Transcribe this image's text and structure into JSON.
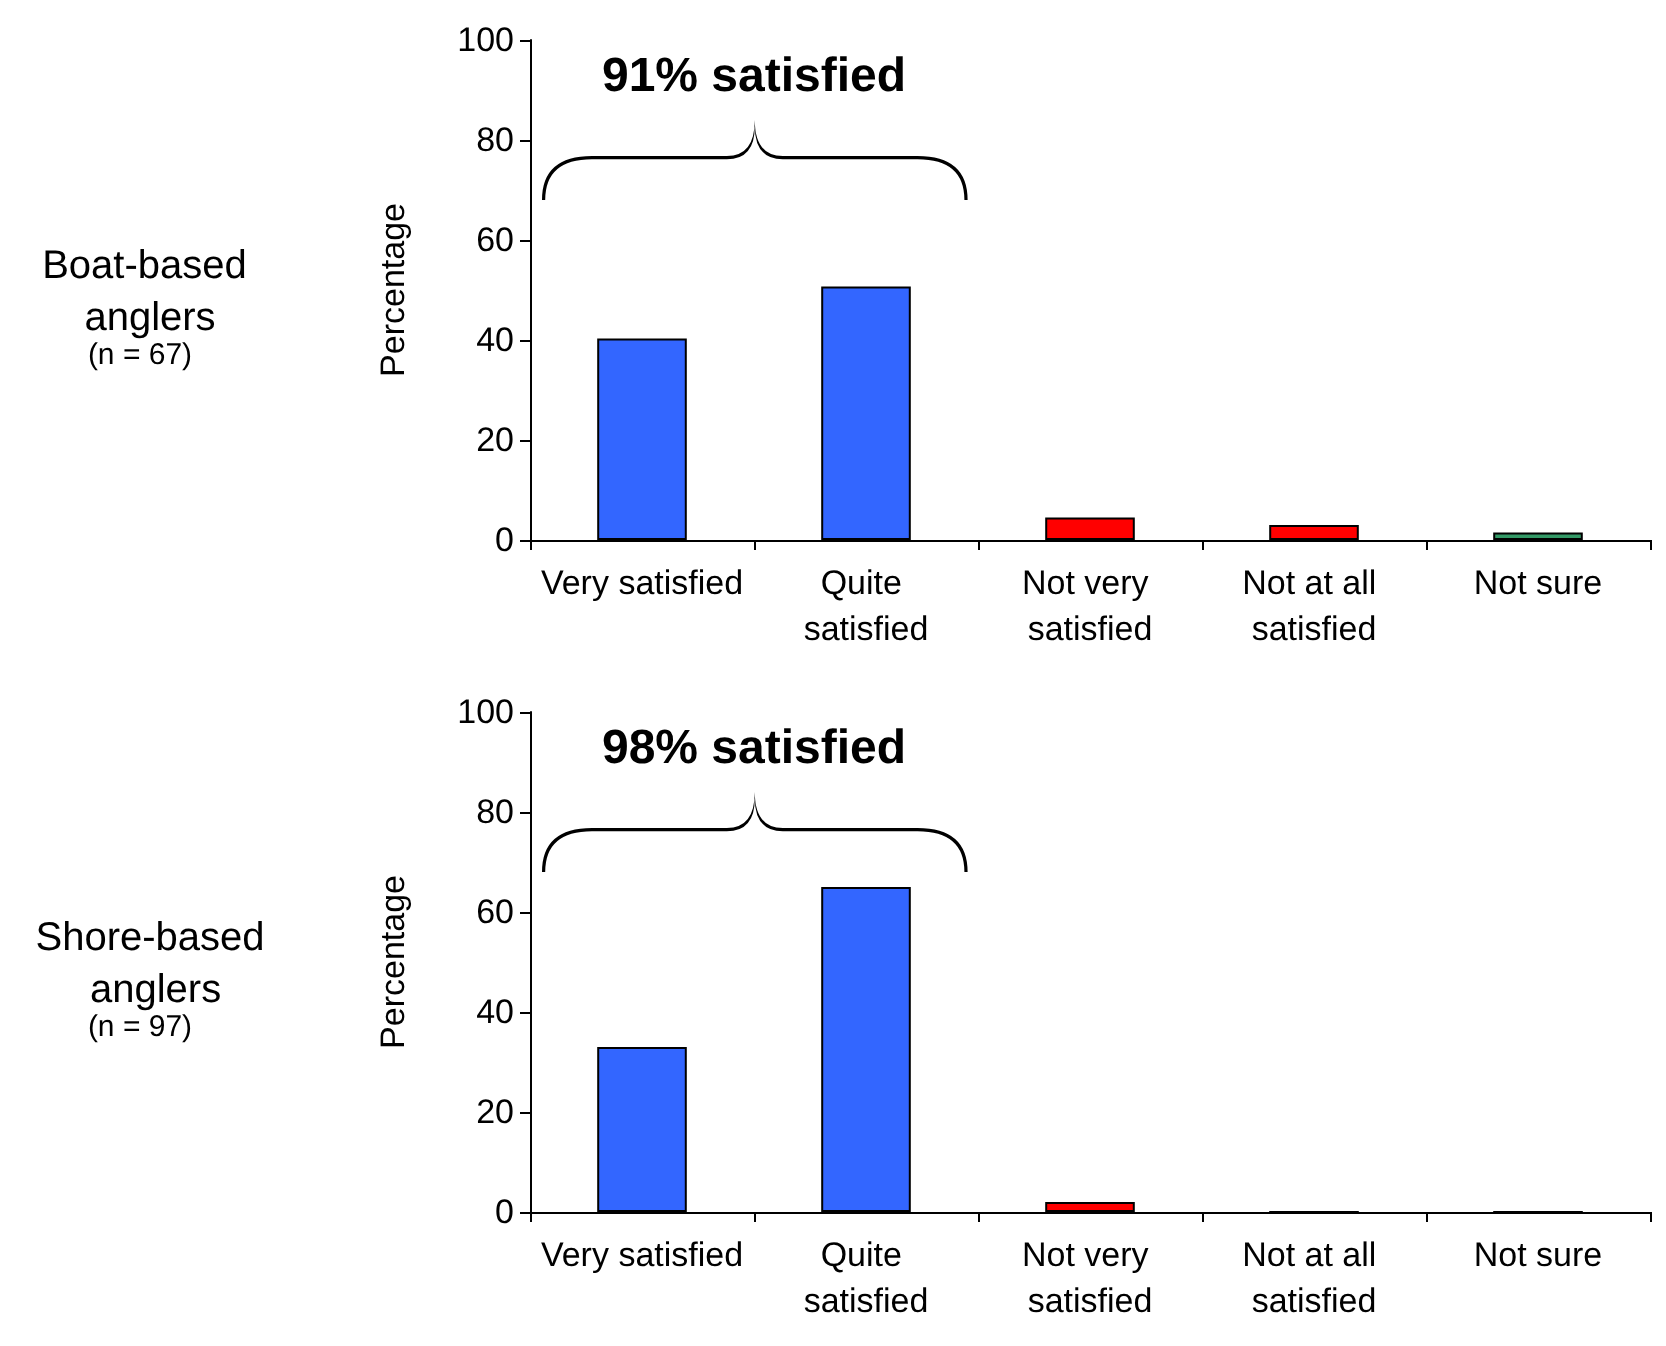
{
  "chart_data": [
    {
      "type": "bar",
      "title": "Boat-based anglers",
      "ylabel": "Percentage",
      "annotations": [
        "91% satisfied",
        "(n = 67)"
      ],
      "categories": [
        "Very satisfied",
        "Quite satisfied",
        "Not very satisfied",
        "Not at all satisfied",
        "Not sure"
      ],
      "values": [
        40.3,
        50.7,
        4.5,
        3,
        1.5
      ],
      "colors": [
        "#3366ff",
        "#3366ff",
        "#ff0000",
        "#ff0000",
        "#339966"
      ],
      "ylim": [
        0,
        100
      ],
      "yticks": [
        0,
        20,
        40,
        60,
        80,
        100
      ],
      "grid": false
    },
    {
      "type": "bar",
      "title": "Shore-based anglers",
      "ylabel": "Percentage",
      "annotations": [
        "98% satisfied",
        "(n = 97)"
      ],
      "categories": [
        "Very satisfied",
        "Quite satisfied",
        "Not very satisfied",
        "Not at all satisfied",
        "Not sure"
      ],
      "values": [
        33,
        65,
        2,
        0,
        0
      ],
      "colors": [
        "#3366ff",
        "#3366ff",
        "#ff0000",
        "#ff0000",
        "#339966"
      ],
      "ylim": [
        0,
        100
      ],
      "yticks": [
        0,
        20,
        40,
        60,
        80,
        100
      ],
      "grid": false
    }
  ]
}
